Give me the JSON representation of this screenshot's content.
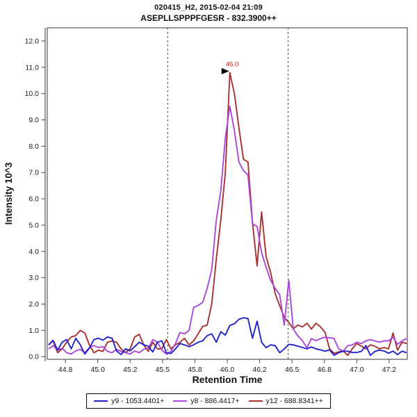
{
  "header": {
    "title": "020415_H2, 2015-02-04 21:09",
    "subtitle": "ASEPLLSPPPFGESR - 832.3900++"
  },
  "chart_data": {
    "type": "line",
    "title": "020415_H2, 2015-02-04 21:09",
    "subtitle": "ASEPLLSPPPFGESR - 832.3900++",
    "xlabel": "Retention Time",
    "ylabel": "Intensity 10^3",
    "xlim": [
      44.61,
      47.39
    ],
    "ylim": [
      -0.1,
      12.5
    ],
    "grid": false,
    "legend_position": "bottom",
    "x_ticks": [
      {
        "value": 44.75,
        "label": "44.8"
      },
      {
        "value": 45.0,
        "label": "45.0"
      },
      {
        "value": 45.25,
        "label": "45.2"
      },
      {
        "value": 45.5,
        "label": "45.5"
      },
      {
        "value": 45.75,
        "label": "45.8"
      },
      {
        "value": 46.0,
        "label": "46.0"
      },
      {
        "value": 46.25,
        "label": "46.2"
      },
      {
        "value": 46.5,
        "label": "46.5"
      },
      {
        "value": 46.75,
        "label": "46.8"
      },
      {
        "value": 47.0,
        "label": "47.0"
      },
      {
        "value": 47.25,
        "label": "47.2"
      }
    ],
    "y_ticks": [
      {
        "value": 0,
        "label": "0.0"
      },
      {
        "value": 1,
        "label": "1.0"
      },
      {
        "value": 2,
        "label": "2.0"
      },
      {
        "value": 3,
        "label": "3.0"
      },
      {
        "value": 4,
        "label": "4.0"
      },
      {
        "value": 5,
        "label": "5.0"
      },
      {
        "value": 6,
        "label": "6.0"
      },
      {
        "value": 7,
        "label": "7.0"
      },
      {
        "value": 8,
        "label": "8.0"
      },
      {
        "value": 9,
        "label": "9.0"
      },
      {
        "value": 10,
        "label": "10.0"
      },
      {
        "value": 11,
        "label": "11.0"
      },
      {
        "value": 12,
        "label": "12.0"
      }
    ],
    "peak_boundaries": {
      "style": "dashed",
      "color": "#303030",
      "values": [
        45.54,
        46.47
      ]
    },
    "peak_annotation": {
      "label": "46.0",
      "x": 46.02,
      "y": 10.8,
      "text_color": "#cc2222",
      "arrow": "right-triangle"
    },
    "x_start": 44.62,
    "x_step": 0.035,
    "series": [
      {
        "id": "y9",
        "name": "y9 - 1053.4401+",
        "color": "#2222cc",
        "values": [
          0.45,
          0.62,
          0.25,
          0.55,
          0.65,
          0.3,
          0.7,
          0.45,
          0.1,
          0.32,
          0.65,
          0.7,
          0.63,
          0.75,
          0.7,
          0.22,
          0.08,
          0.3,
          0.22,
          0.38,
          0.55,
          0.45,
          0.4,
          0.18,
          0.55,
          0.6,
          0.15,
          0.12,
          0.3,
          0.5,
          0.45,
          0.38,
          0.45,
          0.55,
          0.6,
          0.8,
          0.87,
          0.55,
          0.95,
          0.82,
          1.19,
          1.25,
          1.42,
          1.48,
          1.45,
          0.7,
          1.35,
          0.55,
          0.34,
          0.45,
          0.42,
          0.15,
          0.29,
          0.47,
          0.45,
          0.4,
          0.35,
          0.3,
          0.37,
          0.3,
          0.26,
          0.21,
          0.26,
          0.05,
          0.15,
          0.21,
          0.21,
          0.16,
          0.16,
          0.2,
          0.42,
          0.05,
          0.2,
          0.25,
          0.22,
          0.13,
          0.21,
          0.08,
          0.21,
          0.15
        ]
      },
      {
        "id": "y8",
        "name": "y8 - 886.4417+",
        "color": "#aa46dc",
        "values": [
          0.3,
          0.42,
          0.25,
          0.32,
          0.15,
          0.1,
          0.22,
          0.28,
          0.15,
          0.35,
          0.42,
          0.35,
          0.38,
          0.2,
          0.15,
          0.28,
          0.2,
          0.15,
          0.1,
          0.22,
          0.15,
          0.28,
          0.32,
          0.65,
          0.55,
          0.25,
          0.1,
          0.2,
          0.5,
          0.92,
          0.87,
          1.0,
          1.87,
          1.95,
          2.06,
          2.6,
          3.3,
          5.2,
          6.3,
          8.3,
          9.52,
          8.6,
          7.4,
          7.07,
          6.9,
          5.05,
          4.95,
          3.95,
          3.4,
          2.9,
          2.6,
          2.35,
          1.2,
          2.9,
          1.05,
          0.79,
          0.61,
          0.34,
          0.69,
          0.61,
          0.69,
          0.74,
          0.72,
          0.69,
          0.3,
          0.21,
          0.42,
          0.45,
          0.55,
          0.5,
          0.6,
          0.65,
          0.6,
          0.55,
          0.6,
          0.6,
          0.74,
          0.47,
          0.6,
          0.69
        ]
      },
      {
        "id": "y12",
        "name": "y12 - 688.8341++",
        "color": "#a83030",
        "values": [
          0.45,
          0.6,
          0.15,
          0.3,
          0.55,
          0.75,
          0.8,
          1.0,
          0.9,
          0.45,
          0.15,
          0.25,
          0.2,
          0.55,
          0.6,
          0.55,
          0.3,
          0.15,
          0.3,
          0.75,
          0.85,
          0.45,
          0.2,
          0.55,
          0.3,
          0.3,
          0.65,
          0.3,
          0.45,
          0.55,
          0.7,
          0.45,
          0.6,
          0.87,
          1.15,
          1.2,
          2.0,
          3.7,
          5.2,
          7.0,
          10.8,
          10.0,
          8.7,
          7.5,
          7.4,
          5.1,
          3.45,
          5.5,
          3.8,
          3.2,
          2.4,
          1.93,
          1.5,
          1.3,
          1.06,
          1.2,
          1.13,
          1.27,
          1.05,
          1.27,
          1.13,
          0.92,
          0.3,
          0.13,
          0.18,
          0.22,
          0.05,
          0.3,
          0.5,
          0.4,
          0.3,
          0.45,
          0.4,
          0.3,
          0.35,
          0.3,
          0.9,
          0.25,
          0.55,
          0.5
        ]
      }
    ]
  }
}
